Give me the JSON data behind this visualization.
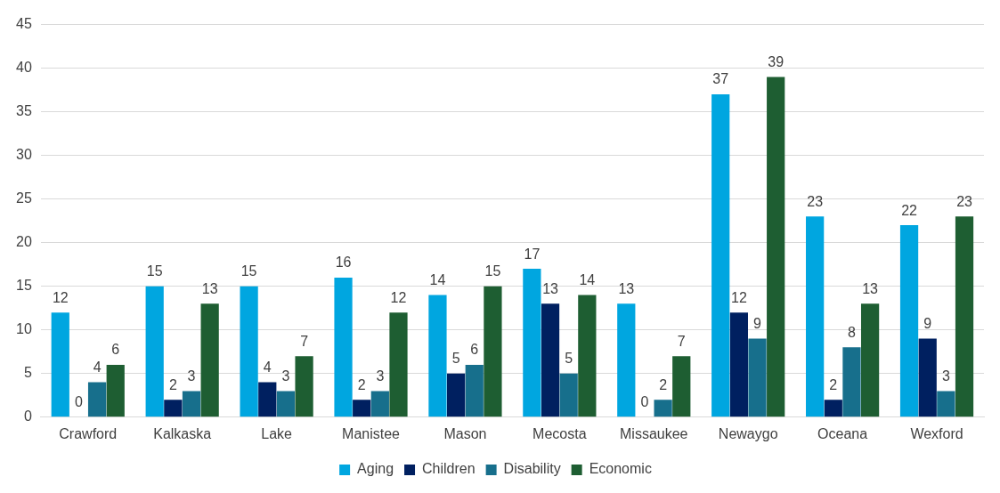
{
  "chart_data": {
    "type": "bar",
    "categories": [
      "Crawford",
      "Kalkaska",
      "Lake",
      "Manistee",
      "Mason",
      "Mecosta",
      "Missaukee",
      "Newaygo",
      "Oceana",
      "Wexford"
    ],
    "series": [
      {
        "name": "Aging",
        "color": "#00a6e0",
        "values": [
          12,
          15,
          15,
          16,
          14,
          17,
          13,
          37,
          23,
          22
        ]
      },
      {
        "name": "Children",
        "color": "#002060",
        "values": [
          0,
          2,
          4,
          2,
          5,
          13,
          0,
          12,
          2,
          9
        ]
      },
      {
        "name": "Disability",
        "color": "#176f8c",
        "values": [
          4,
          3,
          3,
          3,
          6,
          5,
          2,
          9,
          8,
          3
        ]
      },
      {
        "name": "Economic",
        "color": "#1e5e32",
        "values": [
          6,
          13,
          7,
          12,
          15,
          14,
          7,
          39,
          13,
          23
        ]
      }
    ],
    "ylim": [
      0,
      45
    ],
    "yticks": [
      0,
      5,
      10,
      15,
      20,
      25,
      30,
      35,
      40,
      45
    ],
    "grid": "y",
    "legend": "bottom",
    "data_labels": true
  }
}
